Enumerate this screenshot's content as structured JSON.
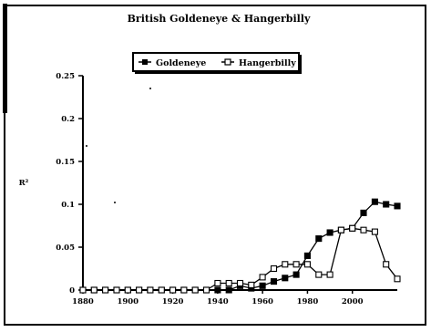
{
  "chart_data": {
    "type": "line",
    "title": "British Goldeneye & Hangerbilly",
    "ylabel": "R²",
    "xlabel": "",
    "x": [
      1880,
      1885,
      1890,
      1895,
      1900,
      1905,
      1910,
      1915,
      1920,
      1925,
      1930,
      1935,
      1940,
      1945,
      1950,
      1955,
      1960,
      1965,
      1970,
      1975,
      1980,
      1985,
      1990,
      1995,
      2000,
      2005,
      2010,
      2015,
      2020
    ],
    "xticks": [
      "1880",
      "1900",
      "1920",
      "1940",
      "1960",
      "1980",
      "2000"
    ],
    "yticks": [
      "0",
      "0.05",
      "0.1",
      "0.15",
      "0.2",
      "0.25"
    ],
    "ylim": [
      0,
      0.25
    ],
    "xlim": [
      1880,
      2020
    ],
    "grid": false,
    "legend_position": "top-center",
    "series": [
      {
        "name": "Goldeneye",
        "marker": "filled-square",
        "color": "#000000",
        "values": [
          0,
          0,
          0,
          0,
          0,
          0,
          0,
          0,
          0,
          0,
          0,
          0,
          0,
          0,
          0.005,
          0.002,
          0.005,
          0.01,
          0.014,
          0.018,
          0.04,
          0.06,
          0.067,
          0.07,
          0.072,
          0.09,
          0.103,
          0.1,
          0.098
        ]
      },
      {
        "name": "Hangerbilly",
        "marker": "open-square",
        "color": "#000000",
        "values": [
          0,
          0,
          0,
          0,
          0,
          0,
          0,
          0,
          0,
          0,
          0,
          0,
          0.008,
          0.008,
          0.008,
          0.006,
          0.015,
          0.025,
          0.03,
          0.03,
          0.03,
          0.018,
          0.018,
          0.07,
          0.072,
          0.07,
          0.068,
          0.03,
          0.013
        ]
      }
    ]
  }
}
